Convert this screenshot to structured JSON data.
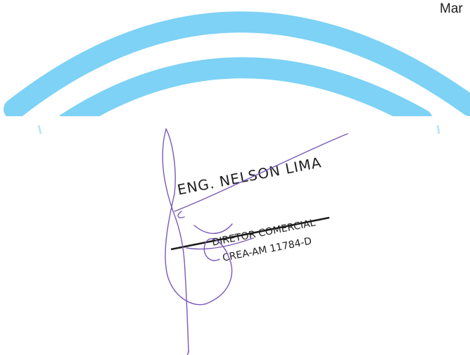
{
  "header": {
    "text": "Mar"
  },
  "stamp": {
    "name": "ENG. NELSON LIMA",
    "title": "DIRETOR COMERCIAL",
    "registration": "CREA-AM 11784-D"
  },
  "colors": {
    "watermark_blue": "#5cc4f0",
    "signature_purple": "#7a5bb8",
    "text_dark": "#1e1e1e"
  }
}
